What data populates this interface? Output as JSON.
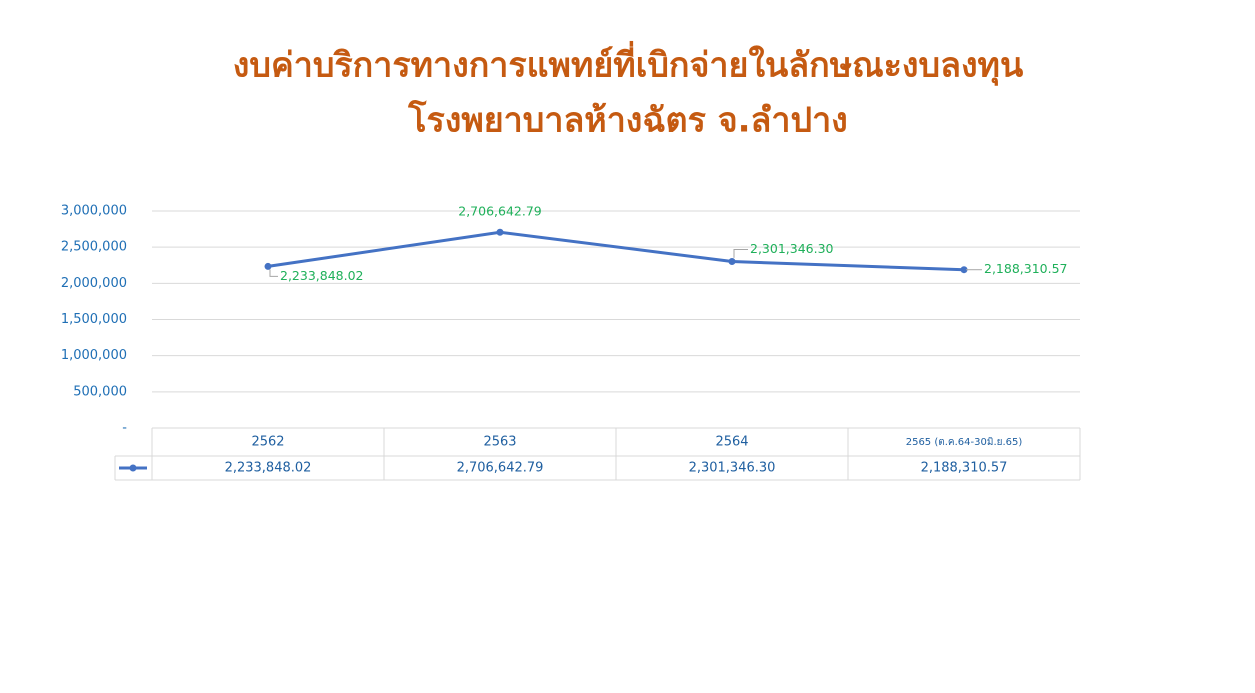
{
  "chart_data": {
    "type": "line",
    "title": "งบค่าบริการทางการแพทย์ที่เบิกจ่ายในลักษณะงบลงทุน",
    "subtitle": "โรงพยาบาลห้างฉัตร จ.ลำปาง",
    "categories": [
      "2562",
      "2563",
      "2564",
      "2565 (ต.ค.64-30มิ.ย.65)"
    ],
    "values": [
      2233848.02,
      2706642.79,
      2301346.3,
      2188310.57
    ],
    "value_labels": [
      "2,233,848.02",
      "2,706,642.79",
      "2,301,346.30",
      "2,188,310.57"
    ],
    "color": "#4472c4",
    "ylim": [
      0,
      3000000
    ],
    "yticks": [
      {
        "value": 0,
        "label": "-"
      },
      {
        "value": 500000,
        "label": "500,000"
      },
      {
        "value": 1000000,
        "label": "1,000,000"
      },
      {
        "value": 1500000,
        "label": "1,500,000"
      },
      {
        "value": 2000000,
        "label": "2,000,000"
      },
      {
        "value": 2500000,
        "label": "2,500,000"
      },
      {
        "value": 3000000,
        "label": "3,000,000"
      }
    ],
    "grid": true
  }
}
